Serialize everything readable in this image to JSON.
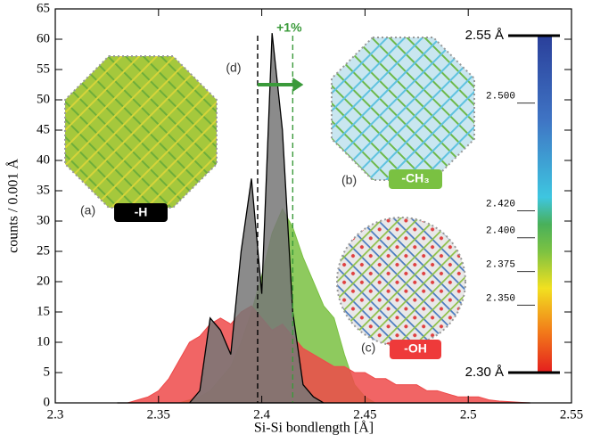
{
  "chart_data": {
    "type": "area",
    "xlabel": "Si-Si bondlength [Å]",
    "ylabel": "counts / 0.001 Å",
    "x": [
      2.33,
      2.335,
      2.34,
      2.345,
      2.35,
      2.355,
      2.36,
      2.365,
      2.37,
      2.375,
      2.38,
      2.385,
      2.39,
      2.395,
      2.4,
      2.405,
      2.41,
      2.415,
      2.42,
      2.425,
      2.43,
      2.435,
      2.44,
      2.445,
      2.45,
      2.455,
      2.46,
      2.465,
      2.47,
      2.475,
      2.48,
      2.485,
      2.49,
      2.495,
      2.5,
      2.505,
      2.51,
      2.515,
      2.52,
      2.525,
      2.53
    ],
    "series": [
      {
        "name": "-CH₃",
        "color": "#7ac142",
        "values": [
          0,
          0,
          0,
          0,
          0,
          0,
          0,
          0.5,
          1,
          2,
          4,
          6,
          10,
          15,
          21,
          28,
          32,
          29,
          24,
          20,
          16,
          14,
          8,
          3,
          1,
          0,
          0,
          0,
          0,
          0,
          0,
          0,
          0,
          0,
          0,
          0,
          0,
          0,
          0,
          0,
          0
        ]
      },
      {
        "name": "-OH",
        "color": "#ee4a4a",
        "values": [
          0,
          0,
          0.5,
          1,
          2,
          4,
          7,
          10,
          11,
          13,
          14,
          13,
          15,
          16,
          14,
          12,
          13,
          11,
          9,
          8,
          7,
          6,
          6,
          5,
          5,
          4,
          4,
          3,
          3,
          3,
          2,
          2,
          1.5,
          1,
          1,
          1,
          0.5,
          0.3,
          0.2,
          0.1,
          0
        ]
      },
      {
        "name": "-H",
        "color": "#777777",
        "stroke": "#000000",
        "values": [
          0,
          0,
          0,
          0,
          0,
          0,
          0,
          0,
          2,
          14,
          12,
          8,
          25,
          37,
          18,
          61,
          45,
          15,
          3,
          1,
          0,
          0,
          0,
          0,
          0,
          0,
          0,
          0,
          0,
          0,
          0,
          0,
          0,
          0,
          0,
          0,
          0,
          0,
          0,
          0,
          0
        ]
      }
    ],
    "xlim": [
      2.3,
      2.55
    ],
    "xticks": [
      2.3,
      2.35,
      2.4,
      2.45,
      2.5,
      2.55
    ],
    "ylim": [
      0,
      65
    ],
    "yticks": [
      0,
      5,
      10,
      15,
      20,
      25,
      30,
      35,
      40,
      45,
      50,
      55,
      60,
      65
    ],
    "reference_lines": [
      {
        "x": 2.398,
        "color": "#000000"
      },
      {
        "x": 2.415,
        "color": "#3a9a3a"
      }
    ],
    "shift_label": "+1%",
    "shift_panel": "(d)",
    "panels": [
      "(a)",
      "(b)",
      "(c)"
    ],
    "colorbar": {
      "lim": [
        2.3,
        2.55
      ],
      "ticks": [
        {
          "value": 2.55,
          "label": "2.55 Å"
        },
        {
          "value": 2.5,
          "label": "2.500"
        },
        {
          "value": 2.42,
          "label": "2.420"
        },
        {
          "value": 2.4,
          "label": "2.400"
        },
        {
          "value": 2.375,
          "label": "2.375"
        },
        {
          "value": 2.35,
          "label": "2.350"
        },
        {
          "value": 2.3,
          "label": "2.30 Å"
        }
      ]
    }
  }
}
